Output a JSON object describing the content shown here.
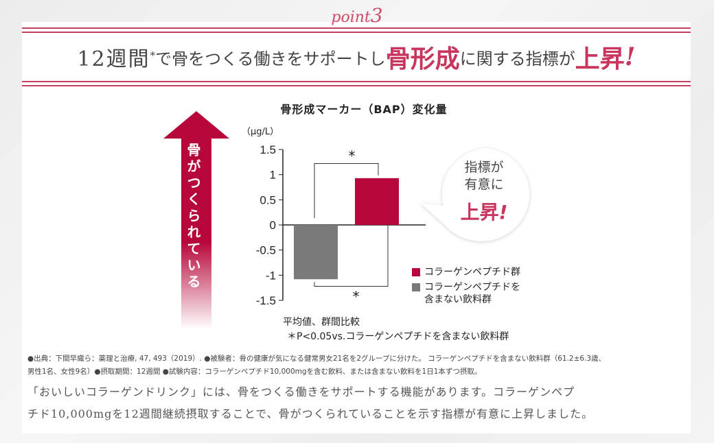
{
  "header": {
    "point_word": "point",
    "point_number": "3",
    "headline_period": "12週間",
    "headline_sup": "*",
    "headline_mid": "で骨をつくる働きをサポートし",
    "headline_accent": "骨形成",
    "headline_mid2": "に関する指標が",
    "headline_accent2": "上昇",
    "headline_exclaim": "!"
  },
  "arrow": {
    "label": "骨がつくられている"
  },
  "bubble": {
    "line1": "指標が",
    "line2": "有意に",
    "emphasis": "上昇",
    "exclaim": "!"
  },
  "legend": {
    "items": [
      {
        "label": "コラーゲンペプチド群"
      },
      {
        "label": "コラーゲンペプチドを",
        "label2": "含まない飲料群"
      }
    ]
  },
  "notes": {
    "line1": "平均値、群間比較",
    "line2": "＊P<0.05vs.コラーゲンペプチドを含まない飲料群"
  },
  "source": {
    "line1": "●出典：下間早織ら：薬理と治療, 47, 493（2019）. ●被験者：骨の健康が気になる健常男女21名を2グループに分けた。 コラーゲンペプチドを含まない飲料群（61.2±6.3歳、",
    "line2": "男性1名、女性9名）●摂取期間：12週間 ●試験内容：コラーゲンペプチド10,000mgを含む飲料、または含まない飲料を1日1本ずつ摂取。"
  },
  "description": {
    "line1": "「おいしいコラーゲンドリンク」には、骨をつくる働きをサポートする機能があります。コラーゲンペプ",
    "line2": "チド10,000mgを12週間継続摂取することで、骨がつくられていることを示す指標が有意に上昇しました。"
  },
  "colors": {
    "accent": "#b7073a",
    "gray_bar": "#7a7a7a",
    "headline_accent": "#c8365e"
  },
  "chart_data": {
    "type": "bar",
    "title": "骨形成マーカー（BAP）変化量",
    "ylabel": "（μg/L）",
    "ylim": [
      -1.5,
      1.5
    ],
    "yticks": [
      1.5,
      1,
      0.5,
      0,
      -0.5,
      -1,
      -1.5
    ],
    "ytick_labels": [
      "1.5",
      "1",
      "0.5",
      "0",
      "-0.5",
      "-1",
      "-1.5"
    ],
    "series": [
      {
        "name": "コラーゲンペプチドを含まない飲料群",
        "value": -1.08,
        "color": "#7a7a7a"
      },
      {
        "name": "コラーゲンペプチド群",
        "value": 0.93,
        "color": "#b7073a"
      }
    ],
    "significance_marks": [
      "*",
      "*"
    ]
  }
}
